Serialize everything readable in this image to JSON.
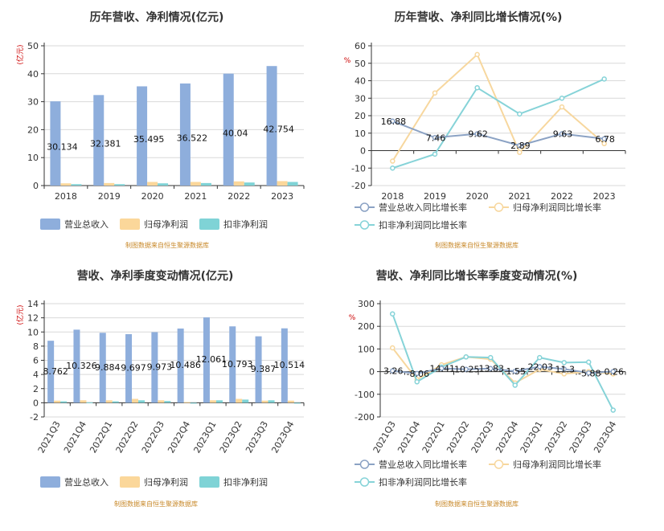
{
  "colors": {
    "revenue": "#8eaedc",
    "parent_profit": "#fbd79a",
    "deducted_profit": "#7fd3d6",
    "revenue_line": "#8ba2c4",
    "parent_line": "#f7d79e",
    "deducted_line": "#86d3d8",
    "grid": "#d9d9d9",
    "axis": "#333333"
  },
  "chart_data": [
    {
      "id": "annual-bar",
      "type": "bar",
      "title": "历年营收、净利情况(亿元)",
      "unit": "(亿元)",
      "source": "制图数据来自恒生聚源数据库",
      "categories": [
        "2018",
        "2019",
        "2020",
        "2021",
        "2022",
        "2023"
      ],
      "ylim": [
        0,
        50
      ],
      "yticks": [
        0,
        10,
        20,
        30,
        40,
        50
      ],
      "series": [
        {
          "name": "营业总收入",
          "color_key": "revenue",
          "values": [
            30.134,
            32.381,
            35.495,
            36.522,
            40.04,
            42.754
          ],
          "labels": [
            "30.134",
            "32.381",
            "35.495",
            "36.522",
            "40.04",
            "42.754"
          ]
        },
        {
          "name": "归母净利润",
          "color_key": "parent_profit",
          "values": [
            0.8,
            0.9,
            1.3,
            1.3,
            1.5,
            1.6
          ]
        },
        {
          "name": "扣非净利润",
          "color_key": "deducted_profit",
          "values": [
            0.5,
            0.5,
            0.8,
            0.9,
            1.1,
            1.3
          ]
        }
      ]
    },
    {
      "id": "annual-line",
      "type": "line",
      "title": "历年营收、净利同比增长情况(%)",
      "unit": "%",
      "source": "制图数据来自恒生聚源数据库",
      "categories": [
        "2018",
        "2019",
        "2020",
        "2021",
        "2022",
        "2023"
      ],
      "ylim": [
        -20,
        60
      ],
      "yticks": [
        -20,
        -10,
        0,
        10,
        20,
        30,
        40,
        50,
        60
      ],
      "series": [
        {
          "name": "营业总收入同比增长率",
          "color_key": "revenue_line",
          "values": [
            16.88,
            7.46,
            9.62,
            2.89,
            9.63,
            6.78
          ],
          "labels": [
            "16.88",
            "7.46",
            "9.62",
            "2.89",
            "9.63",
            "6.78"
          ]
        },
        {
          "name": "归母净利润同比增长率",
          "color_key": "parent_line",
          "values": [
            -6,
            33,
            55,
            -1,
            25,
            4
          ]
        },
        {
          "name": "扣非净利润同比增长率",
          "color_key": "deducted_line",
          "values": [
            -10,
            -2,
            36,
            21,
            30,
            41
          ]
        }
      ]
    },
    {
      "id": "quarter-bar",
      "type": "bar",
      "title": "营收、净利季度变动情况(亿元)",
      "unit": "(亿元)",
      "source": "制图数据来自恒生聚源数据库",
      "categories": [
        "2021Q3",
        "2021Q4",
        "2022Q1",
        "2022Q2",
        "2022Q3",
        "2022Q4",
        "2023Q1",
        "2023Q2",
        "2023Q3",
        "2023Q4"
      ],
      "ylim": [
        -2,
        14
      ],
      "yticks": [
        -2,
        0,
        2,
        4,
        6,
        8,
        10,
        12,
        14
      ],
      "series": [
        {
          "name": "营业总收入",
          "color_key": "revenue",
          "values": [
            8.762,
            10.326,
            9.884,
            9.697,
            9.973,
            10.486,
            12.061,
            10.793,
            9.387,
            10.514
          ],
          "labels": [
            "8.762",
            "10.326",
            "9.884",
            "9.697",
            "9.973",
            "10.486",
            "12.061",
            "10.793",
            "9.387",
            "10.514"
          ]
        },
        {
          "name": "归母净利润",
          "color_key": "parent_profit",
          "values": [
            0.3,
            0.35,
            0.35,
            0.55,
            0.35,
            0.1,
            0.35,
            0.55,
            0.3,
            0.3
          ]
        },
        {
          "name": "扣非净利润",
          "color_key": "deducted_profit",
          "values": [
            0.2,
            0.05,
            0.2,
            0.35,
            0.25,
            -0.05,
            0.35,
            0.45,
            0.35,
            -0.05
          ]
        }
      ]
    },
    {
      "id": "quarter-line",
      "type": "line",
      "title": "营收、净利同比增长率季度变动情况(%)",
      "unit": "%",
      "source": "制图数据来自恒生聚源数据库",
      "categories": [
        "2021Q3",
        "2021Q4",
        "2022Q1",
        "2022Q2",
        "2022Q3",
        "2022Q4",
        "2023Q1",
        "2023Q2",
        "2023Q3",
        "2023Q4"
      ],
      "ylim": [
        -200,
        300
      ],
      "yticks": [
        -200,
        -100,
        0,
        100,
        200,
        300
      ],
      "series": [
        {
          "name": "营业总收入同比增长率",
          "color_key": "revenue_line",
          "values": [
            3.26,
            -8.06,
            14.41,
            10.25,
            13.83,
            1.55,
            22.03,
            11.3,
            -5.88,
            0.26
          ],
          "labels": [
            "3.26",
            "-8.06",
            "14.41",
            "10.25",
            "13.83",
            "1.55",
            "22.03",
            "11.3",
            "-5.88",
            "0.26"
          ]
        },
        {
          "name": "归母净利润同比增长率",
          "color_key": "parent_line",
          "values": [
            105,
            -35,
            30,
            65,
            55,
            -50,
            10,
            -10,
            0,
            -10
          ]
        },
        {
          "name": "扣非净利润同比增长率",
          "color_key": "deducted_line",
          "values": [
            255,
            -45,
            20,
            65,
            62,
            -60,
            62,
            40,
            42,
            -170
          ]
        }
      ]
    }
  ]
}
